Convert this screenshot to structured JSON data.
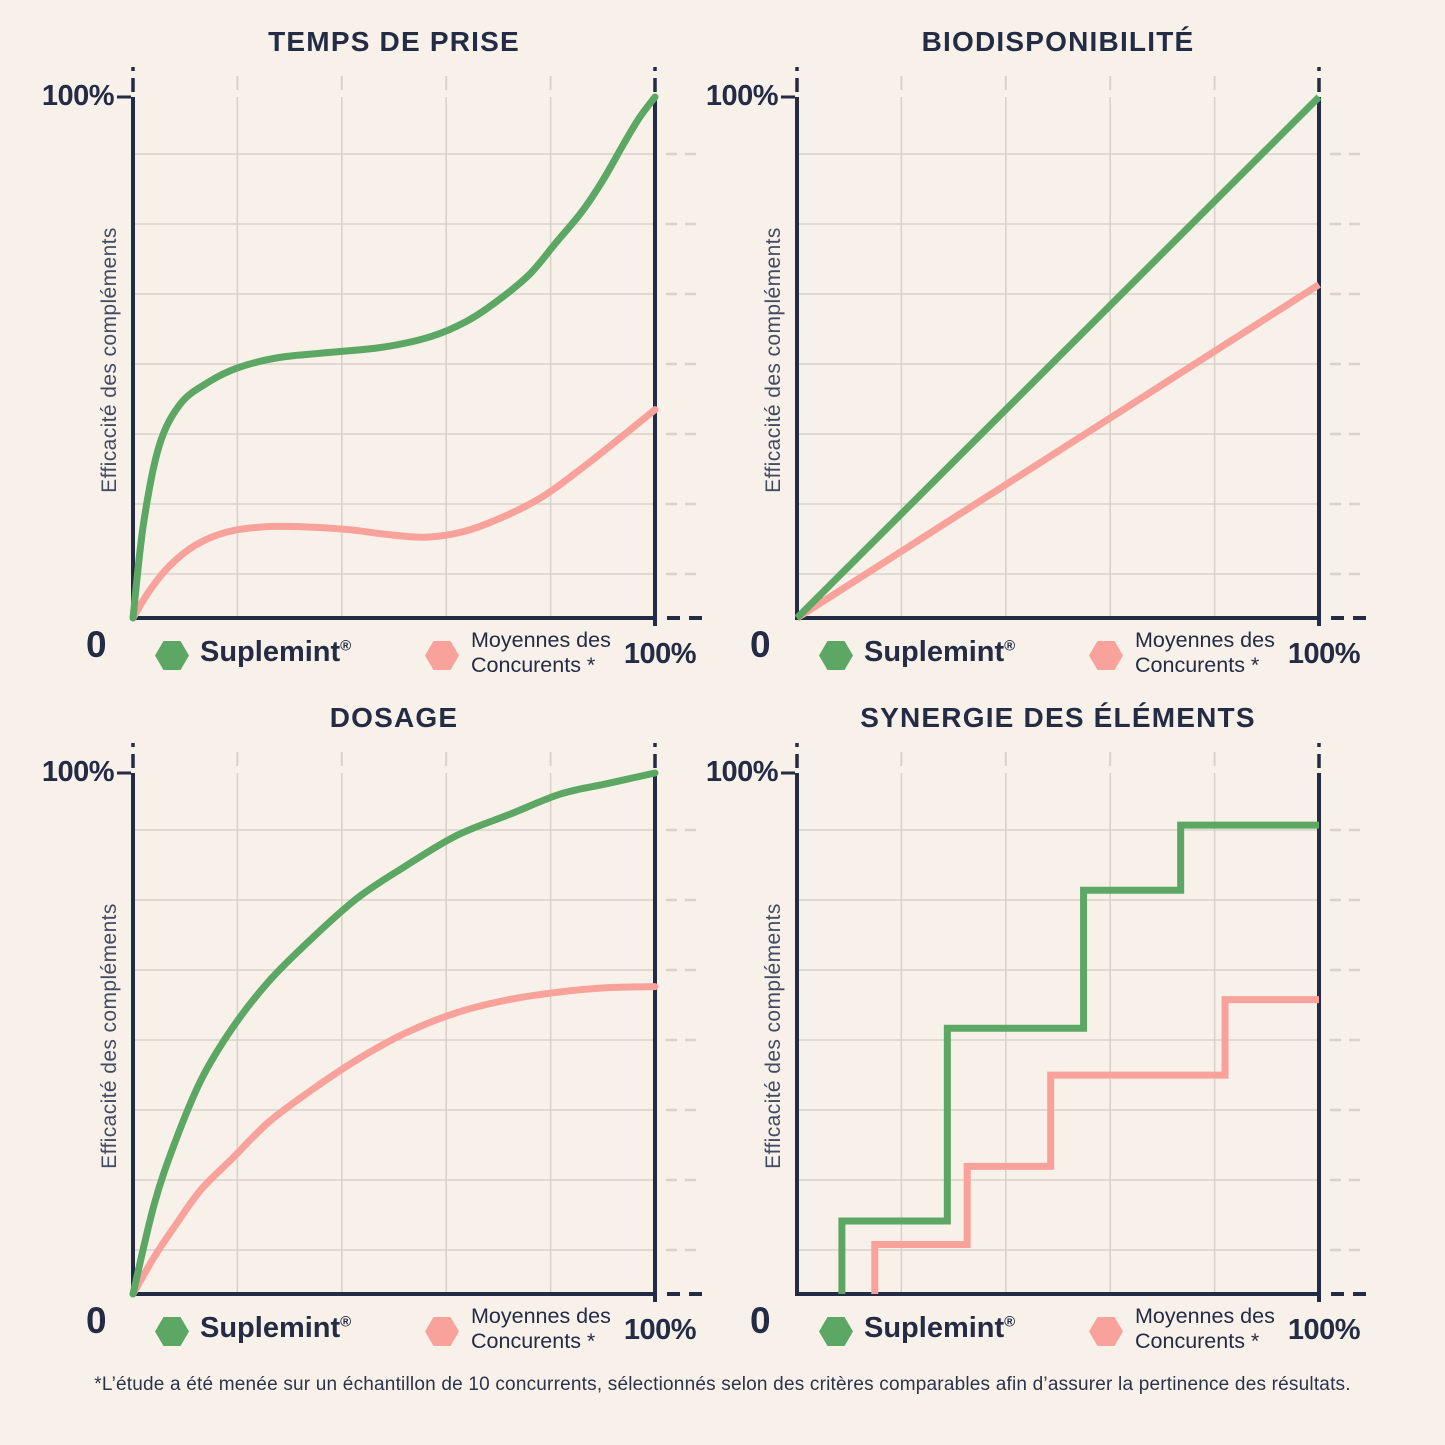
{
  "page": {
    "background": "#f8f1ea",
    "footnote": "*L’étude a été menée sur un échantillon de 10 concurrents, sélectionnés selon des critères comparables afin d’assurer la pertinence des résultats."
  },
  "colors": {
    "suplemint_green": "#5ca763",
    "concurrents_pink": "#f9a29c",
    "axis_navy": "#242b45",
    "gridline": "#d8d2cb"
  },
  "axis": {
    "y_max_label": "100%",
    "y_min_label": "0",
    "x_max_label": "100%",
    "y_title": "Efficacité des compléments"
  },
  "legend": {
    "series1_name": "Suplemint",
    "series1_mark": "®",
    "series2_line1": "Moyennes des",
    "series2_line2": "Concurents *"
  },
  "chart_data": [
    {
      "key": "temps-de-prise",
      "title": "TEMPS DE PRISE",
      "type": "curve",
      "xlabel": "",
      "ylabel": "Efficacité des compléments",
      "xlim": [
        0,
        100
      ],
      "ylim": [
        0,
        100
      ],
      "x_max_tick": "100%",
      "y_max_tick": "100%",
      "y_min_tick": "0",
      "grid": {
        "v_divisions": 5,
        "h_start": 44,
        "h_step": 70,
        "h_count": 7
      },
      "series": [
        {
          "name": "Moyennes des Concurents *",
          "color_key": "concurrents_pink",
          "points": [
            [
              0,
              0
            ],
            [
              3,
              5
            ],
            [
              7,
              10
            ],
            [
              12,
              14
            ],
            [
              18,
              16.5
            ],
            [
              25,
              17.5
            ],
            [
              33,
              17.5
            ],
            [
              41,
              17
            ],
            [
              49,
              16
            ],
            [
              56,
              15.5
            ],
            [
              63,
              16.5
            ],
            [
              70,
              19
            ],
            [
              78,
              23
            ],
            [
              85,
              28
            ],
            [
              92,
              33.5
            ],
            [
              100,
              40
            ]
          ]
        },
        {
          "name": "Suplemint®",
          "color_key": "suplemint_green",
          "points": [
            [
              0,
              0
            ],
            [
              2,
              18
            ],
            [
              5,
              33
            ],
            [
              9,
              41
            ],
            [
              14,
              45
            ],
            [
              20,
              48
            ],
            [
              28,
              50
            ],
            [
              38,
              51
            ],
            [
              48,
              52
            ],
            [
              57,
              54
            ],
            [
              64,
              57
            ],
            [
              70,
              61
            ],
            [
              76,
              66
            ],
            [
              81,
              72
            ],
            [
              86,
              78
            ],
            [
              90,
              84
            ],
            [
              94,
              91
            ],
            [
              97,
              96
            ],
            [
              100,
              100
            ]
          ]
        }
      ]
    },
    {
      "key": "biodisponibilite",
      "title": "BIODISPONIBILITÉ",
      "type": "line",
      "xlabel": "",
      "ylabel": "Efficacité des compléments",
      "xlim": [
        0,
        100
      ],
      "ylim": [
        0,
        100
      ],
      "x_max_tick": "100%",
      "y_max_tick": "100%",
      "y_min_tick": "0",
      "grid": {
        "v_divisions": 5,
        "h_start": 44,
        "h_step": 70,
        "h_count": 7
      },
      "series": [
        {
          "name": "Moyennes des Concurents *",
          "color_key": "concurrents_pink",
          "points": [
            [
              0,
              0
            ],
            [
              100,
              64
            ]
          ]
        },
        {
          "name": "Suplemint®",
          "color_key": "suplemint_green",
          "points": [
            [
              0,
              0
            ],
            [
              100,
              100
            ]
          ]
        }
      ]
    },
    {
      "key": "dosage",
      "title": "DOSAGE",
      "type": "curve",
      "xlabel": "",
      "ylabel": "Efficacité des compléments",
      "xlim": [
        0,
        100
      ],
      "ylim": [
        0,
        100
      ],
      "x_max_tick": "100%",
      "y_max_tick": "100%",
      "y_min_tick": "0",
      "grid": {
        "v_divisions": 5,
        "h_start": 44,
        "h_step": 70,
        "h_count": 7
      },
      "series": [
        {
          "name": "Moyennes des Concurents *",
          "color_key": "concurrents_pink",
          "points": [
            [
              0,
              0
            ],
            [
              4,
              7
            ],
            [
              8,
              13
            ],
            [
              13,
              20
            ],
            [
              19,
              26
            ],
            [
              26,
              33
            ],
            [
              34,
              39
            ],
            [
              43,
              45
            ],
            [
              52,
              50
            ],
            [
              62,
              54
            ],
            [
              72,
              56.5
            ],
            [
              82,
              58
            ],
            [
              91,
              58.8
            ],
            [
              100,
              59
            ]
          ]
        },
        {
          "name": "Suplemint®",
          "color_key": "suplemint_green",
          "points": [
            [
              0,
              0
            ],
            [
              4,
              17
            ],
            [
              8,
              29
            ],
            [
              13,
              41
            ],
            [
              19,
              51
            ],
            [
              26,
              60
            ],
            [
              34,
              68
            ],
            [
              43,
              76
            ],
            [
              52,
              82
            ],
            [
              62,
              88
            ],
            [
              72,
              92
            ],
            [
              82,
              96
            ],
            [
              91,
              98
            ],
            [
              100,
              100
            ]
          ]
        }
      ]
    },
    {
      "key": "synergie-des-elements",
      "title": "SYNERGIE DES ÉLÉMENTS",
      "type": "step",
      "xlabel": "",
      "ylabel": "Efficacité des compléments",
      "xlim": [
        0,
        100
      ],
      "ylim": [
        0,
        100
      ],
      "x_max_tick": "100%",
      "y_max_tick": "100%",
      "y_min_tick": "0",
      "grid": {
        "v_divisions": 5,
        "h_start": 44,
        "h_step": 70,
        "h_count": 7
      },
      "series": [
        {
          "name": "Moyennes des Concurents *",
          "color_key": "concurrents_pink",
          "points": [
            [
              14.9,
              0
            ],
            [
              14.9,
              9.5
            ],
            [
              32.6,
              9.5
            ],
            [
              32.6,
              24.5
            ],
            [
              48.6,
              24.5
            ],
            [
              48.6,
              42
            ],
            [
              82,
              42
            ],
            [
              82,
              56.5
            ],
            [
              100,
              56.5
            ]
          ]
        },
        {
          "name": "Suplemint®",
          "color_key": "suplemint_green",
          "points": [
            [
              8.6,
              0
            ],
            [
              8.6,
              14
            ],
            [
              28.8,
              14
            ],
            [
              28.8,
              51
            ],
            [
              54.9,
              51
            ],
            [
              54.9,
              77.5
            ],
            [
              73.5,
              77.5
            ],
            [
              73.5,
              90
            ],
            [
              100,
              90
            ]
          ]
        }
      ]
    }
  ]
}
